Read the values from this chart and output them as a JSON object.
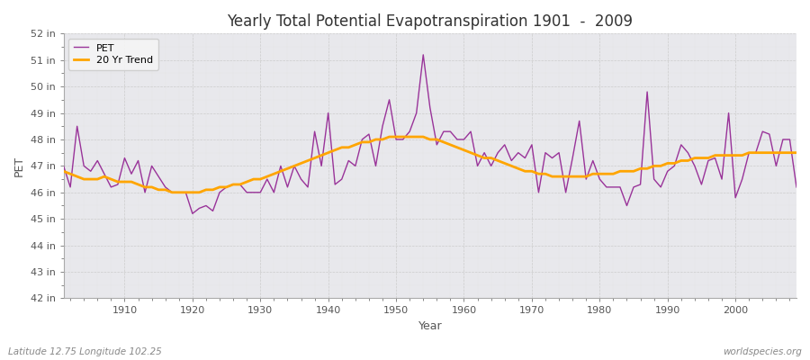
{
  "title": "Yearly Total Potential Evapotranspiration 1901  -  2009",
  "xlabel": "Year",
  "ylabel": "PET",
  "footer_left": "Latitude 12.75 Longitude 102.25",
  "footer_right": "worldspecies.org",
  "legend_pet": "PET",
  "legend_trend": "20 Yr Trend",
  "pet_color": "#993399",
  "trend_color": "#ffa500",
  "fig_bg": "#ffffff",
  "plot_bg": "#e8e8ec",
  "ylim": [
    42,
    52
  ],
  "xlim": [
    1901,
    2009
  ],
  "years": [
    1901,
    1902,
    1903,
    1904,
    1905,
    1906,
    1907,
    1908,
    1909,
    1910,
    1911,
    1912,
    1913,
    1914,
    1915,
    1916,
    1917,
    1918,
    1919,
    1920,
    1921,
    1922,
    1923,
    1924,
    1925,
    1926,
    1927,
    1928,
    1929,
    1930,
    1931,
    1932,
    1933,
    1934,
    1935,
    1936,
    1937,
    1938,
    1939,
    1940,
    1941,
    1942,
    1943,
    1944,
    1945,
    1946,
    1947,
    1948,
    1949,
    1950,
    1951,
    1952,
    1953,
    1954,
    1955,
    1956,
    1957,
    1958,
    1959,
    1960,
    1961,
    1962,
    1963,
    1964,
    1965,
    1966,
    1967,
    1968,
    1969,
    1970,
    1971,
    1972,
    1973,
    1974,
    1975,
    1976,
    1977,
    1978,
    1979,
    1980,
    1981,
    1982,
    1983,
    1984,
    1985,
    1986,
    1987,
    1988,
    1989,
    1990,
    1991,
    1992,
    1993,
    1994,
    1995,
    1996,
    1997,
    1998,
    1999,
    2000,
    2001,
    2002,
    2003,
    2004,
    2005,
    2006,
    2007,
    2008,
    2009
  ],
  "pet_values": [
    47.0,
    46.2,
    48.5,
    47.0,
    46.8,
    47.2,
    46.7,
    46.2,
    46.3,
    47.3,
    46.7,
    47.2,
    46.0,
    47.0,
    46.6,
    46.2,
    46.0,
    46.0,
    46.0,
    45.2,
    45.4,
    45.5,
    45.3,
    46.0,
    46.2,
    46.3,
    46.3,
    46.0,
    46.0,
    46.0,
    46.5,
    46.0,
    47.0,
    46.2,
    47.0,
    46.5,
    46.2,
    48.3,
    47.0,
    49.0,
    46.3,
    46.5,
    47.2,
    47.0,
    48.0,
    48.2,
    47.0,
    48.5,
    49.5,
    48.0,
    48.0,
    48.3,
    49.0,
    51.2,
    49.2,
    47.8,
    48.3,
    48.3,
    48.0,
    48.0,
    48.3,
    47.0,
    47.5,
    47.0,
    47.5,
    47.8,
    47.2,
    47.5,
    47.3,
    47.8,
    46.0,
    47.5,
    47.3,
    47.5,
    46.0,
    47.3,
    48.7,
    46.5,
    47.2,
    46.5,
    46.2,
    46.2,
    46.2,
    45.5,
    46.2,
    46.3,
    49.8,
    46.5,
    46.2,
    46.8,
    47.0,
    47.8,
    47.5,
    47.0,
    46.3,
    47.2,
    47.3,
    46.5,
    49.0,
    45.8,
    46.5,
    47.5,
    47.5,
    48.3,
    48.2,
    47.0,
    48.0,
    48.0,
    46.2
  ],
  "trend_values": [
    46.8,
    46.7,
    46.6,
    46.5,
    46.5,
    46.5,
    46.6,
    46.5,
    46.4,
    46.4,
    46.4,
    46.3,
    46.2,
    46.2,
    46.1,
    46.1,
    46.0,
    46.0,
    46.0,
    46.0,
    46.0,
    46.1,
    46.1,
    46.2,
    46.2,
    46.3,
    46.3,
    46.4,
    46.5,
    46.5,
    46.6,
    46.7,
    46.8,
    46.9,
    47.0,
    47.1,
    47.2,
    47.3,
    47.4,
    47.5,
    47.6,
    47.7,
    47.7,
    47.8,
    47.9,
    47.9,
    48.0,
    48.0,
    48.1,
    48.1,
    48.1,
    48.1,
    48.1,
    48.1,
    48.0,
    48.0,
    47.9,
    47.8,
    47.7,
    47.6,
    47.5,
    47.4,
    47.3,
    47.3,
    47.2,
    47.1,
    47.0,
    46.9,
    46.8,
    46.8,
    46.7,
    46.7,
    46.6,
    46.6,
    46.6,
    46.6,
    46.6,
    46.6,
    46.7,
    46.7,
    46.7,
    46.7,
    46.8,
    46.8,
    46.8,
    46.9,
    46.9,
    47.0,
    47.0,
    47.1,
    47.1,
    47.2,
    47.2,
    47.3,
    47.3,
    47.3,
    47.4,
    47.4,
    47.4,
    47.4,
    47.4,
    47.5,
    47.5,
    47.5,
    47.5,
    47.5,
    47.5,
    47.5,
    47.5
  ]
}
